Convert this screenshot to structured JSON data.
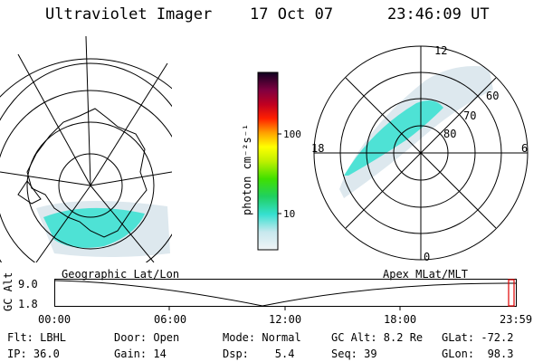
{
  "header": {
    "instrument": "Ultraviolet Imager",
    "date": "17 Oct 07",
    "time": "23:46:09 UT"
  },
  "polar_plot": {
    "mlt_labels": {
      "top": "12",
      "left": "18",
      "right": "6",
      "bottom": "0"
    },
    "lat_labels": [
      "60",
      "70",
      "80"
    ]
  },
  "colorbar": {
    "unit_label": "photon cm⁻²s⁻¹",
    "ticks": [
      "100",
      "10"
    ]
  },
  "map_labels": {
    "left": "Geographic Lat/Lon",
    "right": "Apex MLat/MLT"
  },
  "altitude_plot": {
    "ylabel": "GC Alt",
    "ymax": "9.0",
    "ymin": "1.8",
    "xticks": [
      "00:00",
      "06:00",
      "12:00",
      "18:00",
      "23:59"
    ]
  },
  "info": {
    "row1": {
      "filter": "Flt: LBHL",
      "door": "Door: Open",
      "mode": "Mode: Normal",
      "gc_alt": "GC Alt: 8.2 Re",
      "glat": "GLat: -72.2"
    },
    "row2": {
      "ip": "IP: 36.0",
      "gain": "Gain: 14",
      "dsp": "Dsp:    5.4",
      "seq": "Seq: 39",
      "glon": "GLon:  98.3"
    }
  },
  "colors": {
    "aurora": "#35e0d0",
    "haze": "#dde8ee",
    "line": "#000000"
  }
}
